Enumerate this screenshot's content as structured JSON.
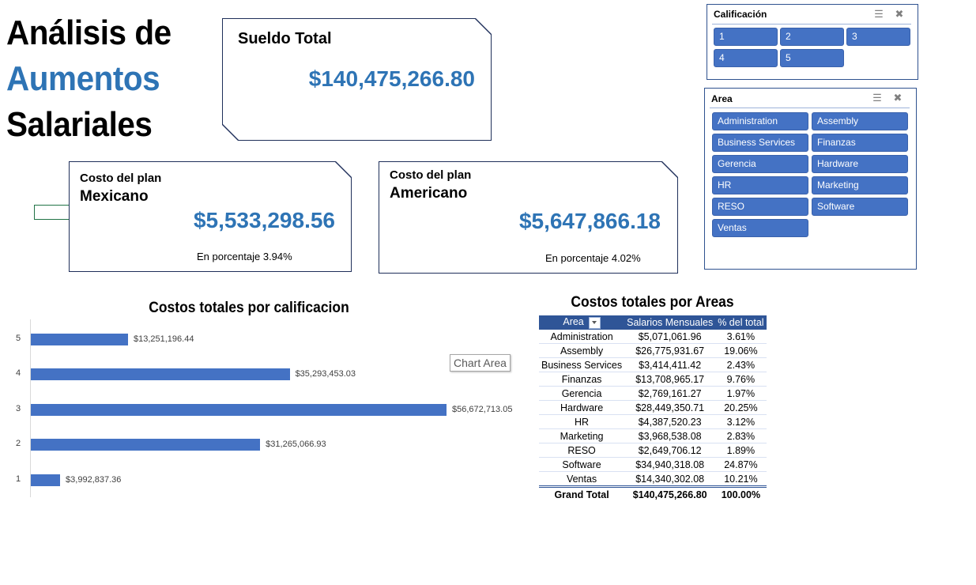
{
  "title": {
    "line1": "Análisis de",
    "line2": "Aumentos",
    "line3": "Salariales"
  },
  "cards": {
    "total": {
      "title": "Sueldo Total",
      "value": "$140,475,266.80"
    },
    "mexicano": {
      "title": "Costo del plan",
      "subtitle": "Mexicano",
      "value": "$5,533,298.56",
      "percentage": "En porcentaje 3.94%"
    },
    "americano": {
      "title": "Costo del plan",
      "subtitle": "Americano",
      "value": "$5,647,866.18",
      "percentage": "En porcentaje 4.02%"
    }
  },
  "slicers": {
    "calificacion": {
      "title": "Calificación",
      "items": [
        "1",
        "2",
        "3",
        "4",
        "5"
      ]
    },
    "area": {
      "title": "Area",
      "items": [
        "Administration",
        "Assembly",
        "Business Services",
        "Finanzas",
        "Gerencia",
        "Hardware",
        "HR",
        "Marketing",
        "RESO",
        "Software",
        "Ventas"
      ]
    }
  },
  "chart_area_tooltip": "Chart Area",
  "chart_data": {
    "type": "bar",
    "orientation": "horizontal",
    "title": "Costos totales por calificacion",
    "categories": [
      "5",
      "4",
      "3",
      "2",
      "1"
    ],
    "values": [
      13251196.44,
      35293453.03,
      56672713.05,
      31265066.93,
      3992837.36
    ],
    "labels": [
      "$13,251,196.44",
      "$35,293,453.03",
      "$56,672,713.05",
      "$31,265,066.93",
      "$3,992,837.36"
    ],
    "color": "#4472c4",
    "xlabel": "",
    "ylabel": "",
    "grid": false
  },
  "table": {
    "title": "Costos totales por Areas",
    "headers": [
      "Area",
      "Salarios Mensuales",
      "% del total"
    ],
    "rows": [
      [
        "Administration",
        "$5,071,061.96",
        "3.61%"
      ],
      [
        "Assembly",
        "$26,775,931.67",
        "19.06%"
      ],
      [
        "Business Services",
        "$3,414,411.42",
        "2.43%"
      ],
      [
        "Finanzas",
        "$13,708,965.17",
        "9.76%"
      ],
      [
        "Gerencia",
        "$2,769,161.27",
        "1.97%"
      ],
      [
        "Hardware",
        "$28,449,350.71",
        "20.25%"
      ],
      [
        "HR",
        "$4,387,520.23",
        "3.12%"
      ],
      [
        "Marketing",
        "$3,968,538.08",
        "2.83%"
      ],
      [
        "RESO",
        "$2,649,706.12",
        "1.89%"
      ],
      [
        "Software",
        "$34,940,318.08",
        "24.87%"
      ],
      [
        "Ventas",
        "$14,340,302.08",
        "10.21%"
      ]
    ],
    "total": [
      "Grand Total",
      "$140,475,266.80",
      "100.00%"
    ]
  },
  "colors": {
    "accent": "#2e74b5",
    "slicer_button": "#4472c4",
    "header": "#2f5597",
    "card_border": "#1f2f5a"
  }
}
